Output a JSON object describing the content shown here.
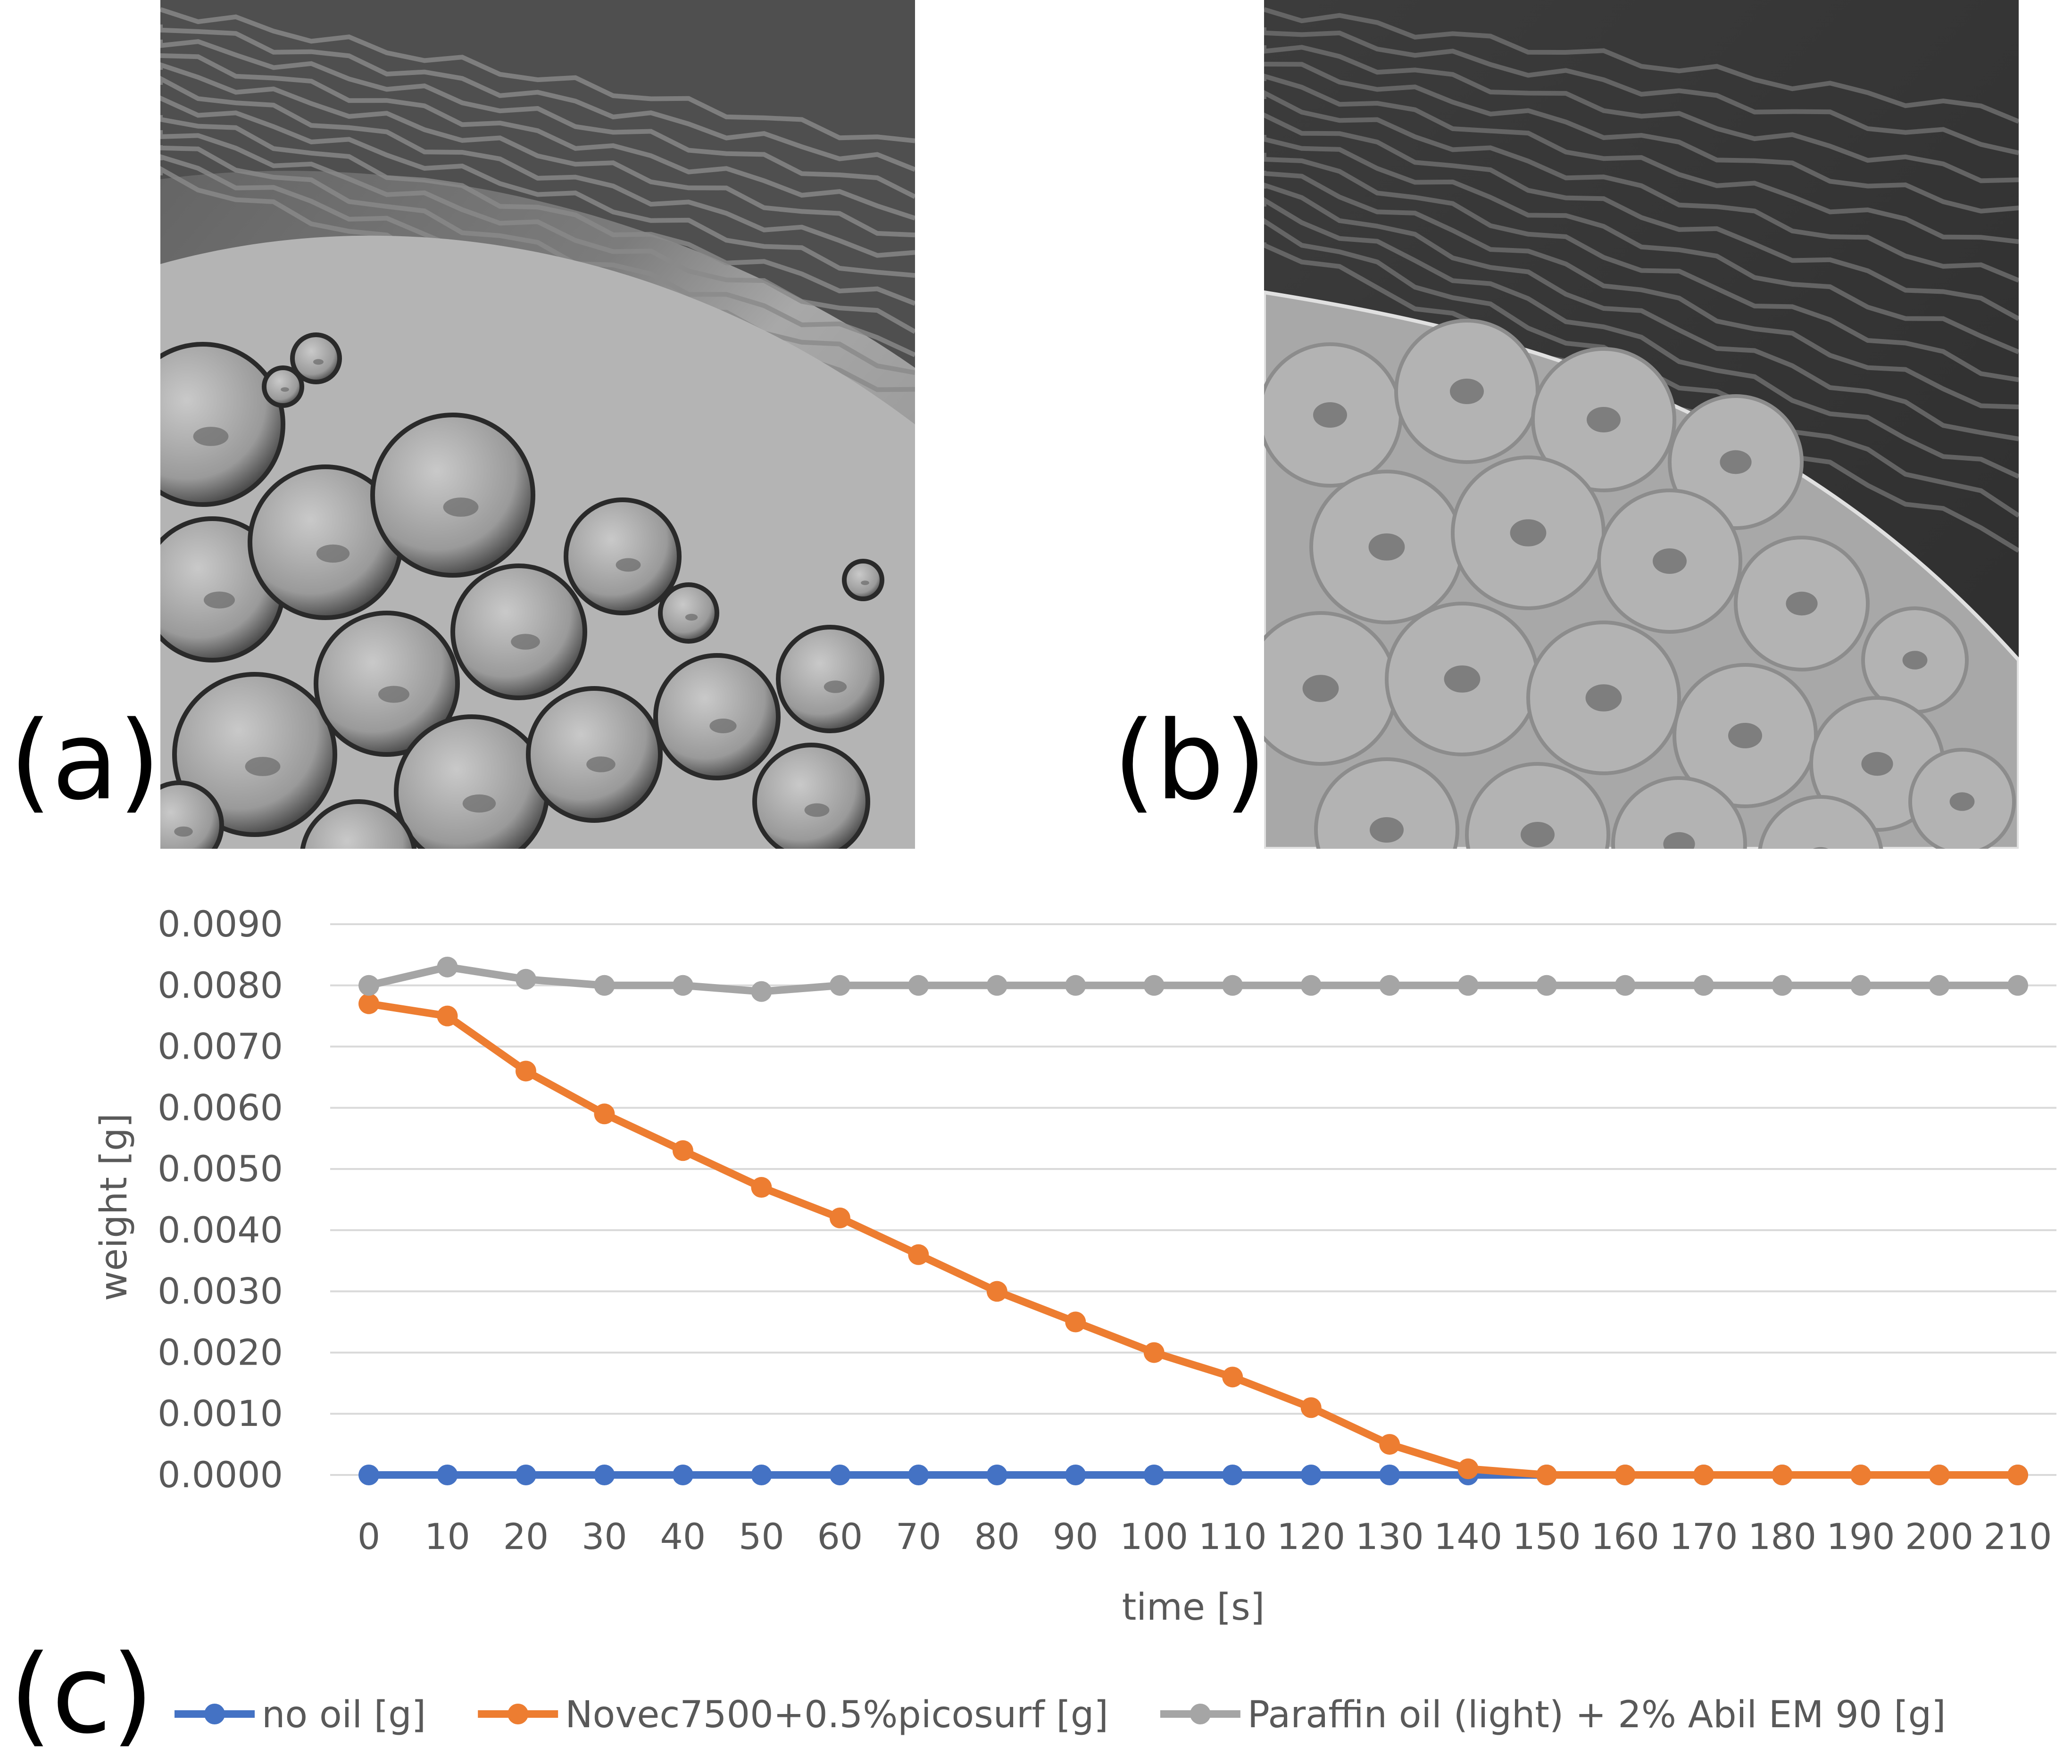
{
  "panels": {
    "a": {
      "label": "(a)"
    },
    "b": {
      "label": "(b)"
    },
    "c": {
      "label": "(c)"
    }
  },
  "chart_data": {
    "type": "line",
    "title": "",
    "xlabel": "time [s]",
    "ylabel": "weight [g]",
    "x": [
      0,
      10,
      20,
      30,
      40,
      50,
      60,
      70,
      80,
      90,
      100,
      110,
      120,
      130,
      140,
      150,
      160,
      170,
      180,
      190,
      200,
      210
    ],
    "ylim": [
      0,
      0.009
    ],
    "yticks": [
      "0.0000",
      "0.0010",
      "0.0020",
      "0.0030",
      "0.0040",
      "0.0050",
      "0.0060",
      "0.0070",
      "0.0080",
      "0.0090"
    ],
    "grid": true,
    "legend_position": "bottom",
    "series": [
      {
        "name": "no oil [g]",
        "color": "#4472c4",
        "values": [
          0,
          0,
          0,
          0,
          0,
          0,
          0,
          0,
          0,
          0,
          0,
          0,
          0,
          0,
          0,
          0,
          0,
          0,
          0,
          0,
          0,
          0
        ]
      },
      {
        "name": "Novec7500+0.5%picosurf [g]",
        "color": "#ed7d31",
        "values": [
          0.0077,
          0.0075,
          0.0066,
          0.0059,
          0.0053,
          0.0047,
          0.0042,
          0.0036,
          0.003,
          0.0025,
          0.002,
          0.0016,
          0.0011,
          0.0005,
          0.0001,
          0,
          0,
          0,
          0,
          0,
          0,
          0
        ]
      },
      {
        "name": "Paraffin oil (light) + 2% Abil EM 90 [g]",
        "color": "#a5a5a5",
        "values": [
          0.008,
          0.0083,
          0.0081,
          0.008,
          0.008,
          0.0079,
          0.008,
          0.008,
          0.008,
          0.008,
          0.008,
          0.008,
          0.008,
          0.008,
          0.008,
          0.008,
          0.008,
          0.008,
          0.008,
          0.008,
          0.008,
          0.008
        ]
      }
    ]
  }
}
